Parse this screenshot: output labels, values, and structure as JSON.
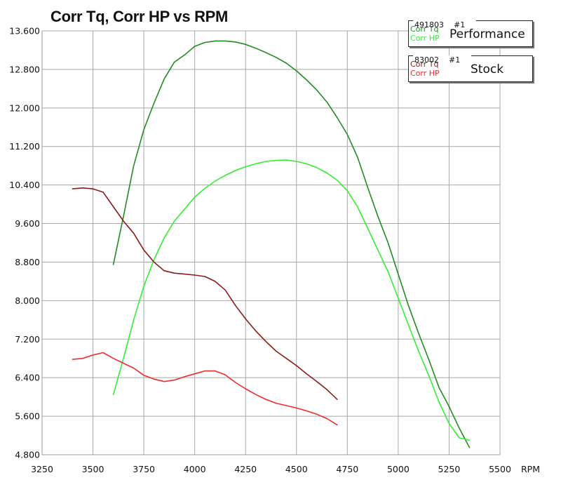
{
  "chart_data": {
    "type": "line",
    "title": "Corr Tq, Corr HP vs RPM",
    "xlabel": "RPM",
    "ylabel": "",
    "xlim": [
      3250,
      5500
    ],
    "ylim": [
      4.8,
      13.6
    ],
    "x_ticks": [
      "3250",
      "3500",
      "3750",
      "4000",
      "4250",
      "4500",
      "4750",
      "5000",
      "5250",
      "5500"
    ],
    "y_ticks": [
      "13.600",
      "12.800",
      "12.000",
      "11.200",
      "10.400",
      "9.600",
      "8.800",
      "8.000",
      "7.200",
      "6.400",
      "5.600",
      "4.800"
    ],
    "grid": true,
    "series": [
      {
        "name": "Performance Corr Tq",
        "color": "#228B22",
        "x": [
          3600,
          3650,
          3700,
          3750,
          3800,
          3850,
          3900,
          3950,
          4000,
          4050,
          4100,
          4150,
          4200,
          4250,
          4300,
          4350,
          4400,
          4450,
          4500,
          4550,
          4600,
          4650,
          4700,
          4750,
          4800,
          4850,
          4900,
          4950,
          5000,
          5050,
          5100,
          5150,
          5200,
          5250,
          5300,
          5350
        ],
        "values": [
          8.75,
          9.75,
          10.8,
          11.55,
          12.1,
          12.6,
          12.95,
          13.1,
          13.28,
          13.36,
          13.39,
          13.39,
          13.37,
          13.32,
          13.24,
          13.15,
          13.05,
          12.93,
          12.77,
          12.58,
          12.37,
          12.12,
          11.8,
          11.45,
          10.98,
          10.35,
          9.75,
          9.2,
          8.55,
          7.9,
          7.32,
          6.78,
          6.2,
          5.8,
          5.35,
          4.95
        ]
      },
      {
        "name": "Performance Corr HP",
        "color": "#33EE33",
        "x": [
          3600,
          3650,
          3700,
          3750,
          3800,
          3850,
          3900,
          3950,
          4000,
          4050,
          4100,
          4150,
          4200,
          4250,
          4300,
          4350,
          4400,
          4450,
          4500,
          4550,
          4600,
          4650,
          4700,
          4750,
          4800,
          4850,
          4900,
          4950,
          5000,
          5050,
          5100,
          5150,
          5200,
          5250,
          5300,
          5350
        ],
        "values": [
          6.05,
          6.8,
          7.6,
          8.3,
          8.85,
          9.3,
          9.65,
          9.9,
          10.15,
          10.33,
          10.48,
          10.6,
          10.7,
          10.78,
          10.84,
          10.89,
          10.91,
          10.92,
          10.89,
          10.84,
          10.76,
          10.65,
          10.5,
          10.28,
          9.95,
          9.5,
          9.05,
          8.6,
          8.05,
          7.5,
          6.95,
          6.45,
          5.9,
          5.45,
          5.15,
          5.1
        ]
      },
      {
        "name": "Stock Corr Tq",
        "color": "#8B1A1A",
        "x": [
          3400,
          3450,
          3500,
          3550,
          3600,
          3650,
          3700,
          3750,
          3800,
          3850,
          3900,
          3950,
          4000,
          4050,
          4100,
          4150,
          4200,
          4250,
          4300,
          4350,
          4400,
          4450,
          4500,
          4550,
          4600,
          4650,
          4700
        ],
        "values": [
          10.32,
          10.34,
          10.32,
          10.25,
          9.95,
          9.65,
          9.4,
          9.05,
          8.8,
          8.62,
          8.57,
          8.55,
          8.53,
          8.5,
          8.4,
          8.22,
          7.9,
          7.62,
          7.37,
          7.15,
          6.95,
          6.8,
          6.65,
          6.48,
          6.32,
          6.15,
          5.95
        ]
      },
      {
        "name": "Stock Corr HP",
        "color": "#EE2B2B",
        "x": [
          3400,
          3450,
          3500,
          3550,
          3600,
          3650,
          3700,
          3750,
          3800,
          3850,
          3900,
          3950,
          4000,
          4050,
          4100,
          4150,
          4200,
          4250,
          4300,
          4350,
          4400,
          4450,
          4500,
          4550,
          4600,
          4650,
          4700
        ],
        "values": [
          6.78,
          6.8,
          6.87,
          6.92,
          6.8,
          6.7,
          6.6,
          6.45,
          6.37,
          6.32,
          6.35,
          6.42,
          6.48,
          6.54,
          6.54,
          6.46,
          6.3,
          6.17,
          6.05,
          5.95,
          5.87,
          5.82,
          5.77,
          5.71,
          5.64,
          5.55,
          5.42
        ]
      }
    ]
  },
  "legend": {
    "groups": [
      {
        "id": "491803",
        "run": "#1",
        "name": "Performance",
        "tq_label": "Corr Tq",
        "hp_label": "Corr HP",
        "tq_color": "#228B22",
        "hp_color": "#33EE33"
      },
      {
        "id": "83002",
        "run": "#1",
        "name": "Stock",
        "tq_label": "Corr Tq",
        "hp_label": "Corr HP",
        "tq_color": "#8B1A1A",
        "hp_color": "#EE2B2B"
      }
    ]
  }
}
